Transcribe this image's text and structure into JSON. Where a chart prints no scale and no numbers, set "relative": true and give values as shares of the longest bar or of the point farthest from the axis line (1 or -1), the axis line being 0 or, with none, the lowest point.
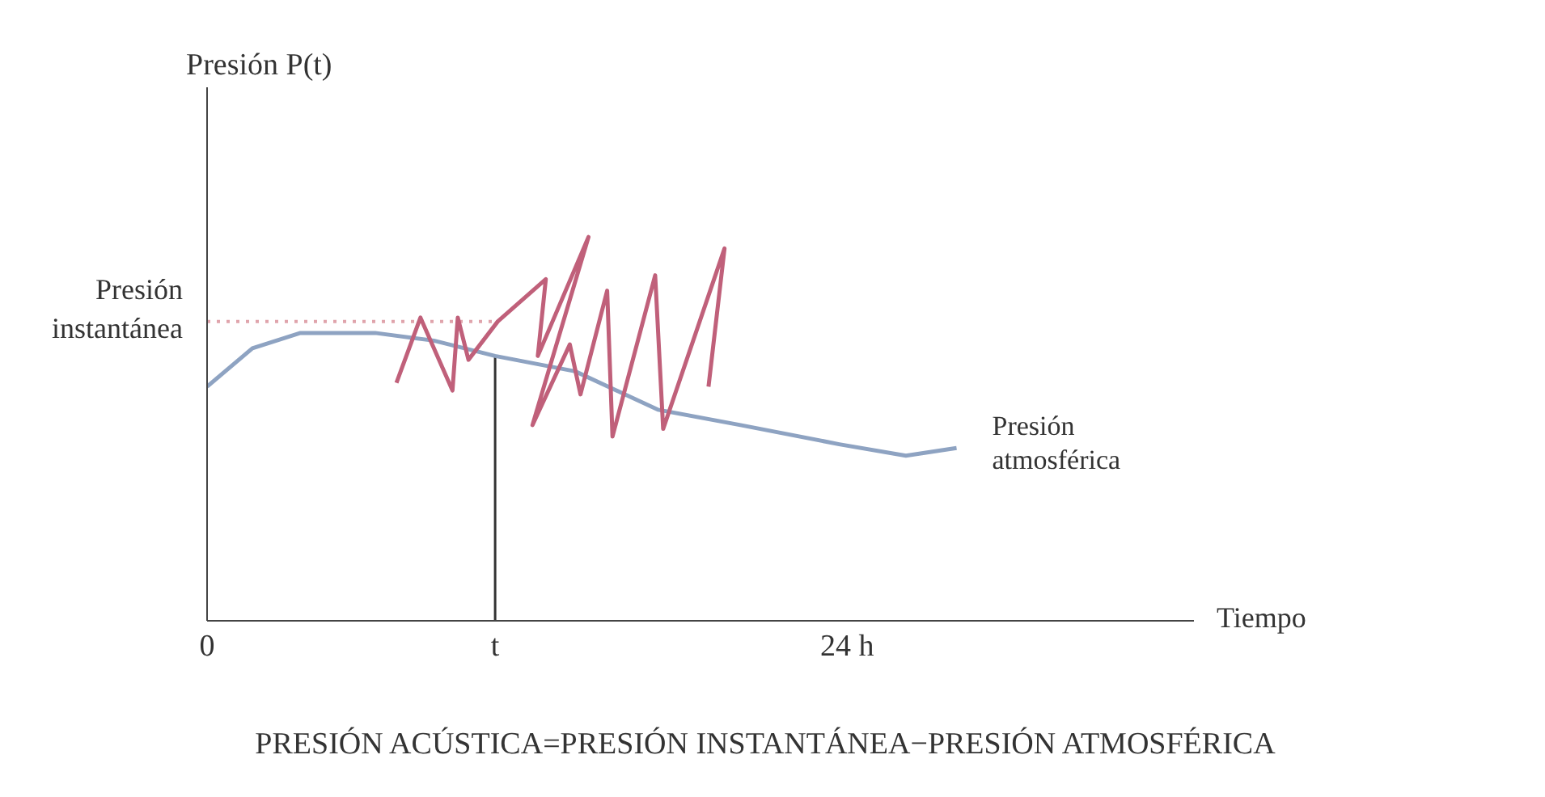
{
  "chart_data": {
    "type": "line",
    "relative": true,
    "xlabel": "Tiempo",
    "annotations": [
      "Presión P(t)",
      "PRESIÓN ACÚSTICA=PRESIÓN INSTANTÁNEA−PRESIÓN ATMOSFÉRICA"
    ],
    "xlim": [
      0,
      37
    ],
    "xticks": [
      0,
      {
        "value": 10.8,
        "label": "t"
      },
      {
        "value": 24,
        "label": "24 h"
      }
    ],
    "series": [
      {
        "name": "Presión atmosférica",
        "color": "#8ea3c2",
        "x": [
          0,
          1.7,
          3.5,
          6.3,
          8.5,
          10.8,
          13.8,
          16.9,
          20.0,
          23.7,
          26.2,
          28.1
        ],
        "values": [
          0.61,
          0.71,
          0.75,
          0.75,
          0.73,
          0.69,
          0.65,
          0.55,
          0.51,
          0.46,
          0.43,
          0.45
        ]
      },
      {
        "color": "#c0607a",
        "x": [
          7.1,
          8.0,
          9.2,
          9.4,
          9.8,
          10.9,
          12.7,
          12.4,
          14.3,
          12.2,
          13.6,
          14.0,
          15.0,
          15.2,
          16.8,
          17.1,
          19.4,
          18.8
        ],
        "values": [
          0.62,
          0.79,
          0.6,
          0.79,
          0.68,
          0.78,
          0.89,
          0.69,
          1,
          0.51,
          0.72,
          0.59,
          0.86,
          0.48,
          0.9,
          0.5,
          0.97,
          0.61
        ]
      }
    ],
    "ref_lines": [
      {
        "axis": "y",
        "value": 0.78,
        "label": "Presión instantánea",
        "color": "#e0a4ac",
        "line_style": "dotted"
      },
      {
        "axis": "x",
        "value": 10.8,
        "color": "#333333",
        "line_style": "solid"
      }
    ]
  }
}
